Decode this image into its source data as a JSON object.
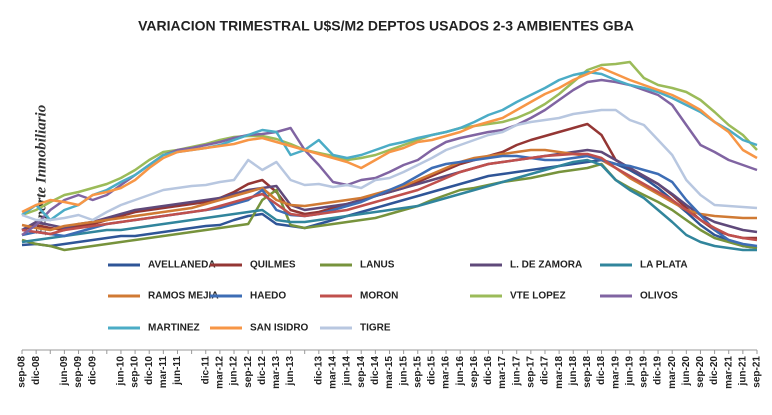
{
  "chart_data": {
    "type": "line",
    "title": "VARIACION TRIMESTRAL U$S/M2 DEPTOS USADOS 2-3 AMBIENTES GBA",
    "watermark": "Reporte Inmobiliario",
    "categories": [
      "sep-08",
      "dic-08",
      null,
      "jun-09",
      "sep-09",
      "dic-09",
      null,
      "jun-10",
      "sep-10",
      "dic-10",
      "mar-11",
      "jun-11",
      null,
      "dic-11",
      "mar-12",
      "jun-12",
      "sep-12",
      "dic-12",
      "mar-13",
      "jun-13",
      null,
      "dic-13",
      "mar-14",
      "jun-14",
      "sep-14",
      "dic-14",
      "mar-15",
      "jun-15",
      "sep-15",
      "dic-15",
      "mar-16",
      "jun-16",
      "sep-16",
      "dic-16",
      "mar-17",
      "jun-17",
      "sep-17",
      "dic-17",
      "mar-18",
      "jun-18",
      "sep-18",
      "dic-18",
      "mar-19",
      "jun-19",
      "sep-19",
      "dic-19",
      "mar-20",
      "jun-20",
      "sep-20",
      "dic-20",
      "mar-21",
      "jun-21",
      "sep-21"
    ],
    "ylim": [
      -100,
      210
    ],
    "legend": "bottom",
    "series": [
      {
        "name": "AVELLANEDA",
        "color": "#2f5597",
        "values": [
          5,
          6,
          4,
          6,
          8,
          10,
          12,
          14,
          14,
          16,
          18,
          20,
          22,
          24,
          25,
          30,
          34,
          36,
          26,
          24,
          22,
          26,
          30,
          34,
          38,
          42,
          46,
          50,
          54,
          58,
          62,
          66,
          70,
          74,
          76,
          78,
          80,
          82,
          84,
          86,
          88,
          90,
          86,
          80,
          72,
          62,
          50,
          38,
          25,
          15,
          10,
          4,
          2
        ]
      },
      {
        "name": "QUILMES",
        "color": "#943634",
        "values": [
          20,
          25,
          22,
          20,
          24,
          26,
          30,
          34,
          38,
          40,
          42,
          44,
          46,
          48,
          52,
          58,
          66,
          70,
          58,
          40,
          36,
          38,
          42,
          46,
          50,
          54,
          58,
          62,
          68,
          74,
          80,
          86,
          90,
          94,
          98,
          105,
          110,
          114,
          118,
          122,
          126,
          115,
          90,
          82,
          74,
          66,
          55,
          42,
          30,
          20,
          15,
          12,
          12
        ]
      },
      {
        "name": "LANUS",
        "color": "#77933c",
        "values": [
          10,
          6,
          4,
          0,
          2,
          4,
          6,
          8,
          10,
          12,
          14,
          16,
          18,
          20,
          22,
          24,
          26,
          50,
          60,
          25,
          22,
          24,
          26,
          28,
          30,
          32,
          36,
          40,
          44,
          50,
          55,
          60,
          62,
          65,
          68,
          70,
          72,
          75,
          78,
          80,
          82,
          86,
          70,
          62,
          55,
          48,
          40,
          30,
          20,
          12,
          8,
          4,
          2
        ]
      },
      {
        "name": "L. DE ZAMORA",
        "color": "#5f497a",
        "values": [
          20,
          28,
          25,
          22,
          26,
          28,
          32,
          36,
          40,
          42,
          44,
          46,
          48,
          50,
          52,
          56,
          60,
          62,
          64,
          45,
          40,
          42,
          44,
          46,
          50,
          54,
          58,
          62,
          66,
          70,
          74,
          78,
          82,
          86,
          88,
          90,
          92,
          94,
          96,
          98,
          100,
          98,
          90,
          82,
          74,
          66,
          56,
          45,
          35,
          28,
          24,
          20,
          18
        ]
      },
      {
        "name": "LA PLATA",
        "color": "#31859c",
        "values": [
          8,
          10,
          12,
          14,
          16,
          18,
          20,
          20,
          22,
          24,
          26,
          28,
          30,
          32,
          34,
          36,
          38,
          40,
          30,
          28,
          28,
          30,
          32,
          34,
          36,
          38,
          40,
          42,
          44,
          48,
          52,
          56,
          60,
          64,
          68,
          72,
          76,
          80,
          84,
          88,
          90,
          85,
          70,
          60,
          52,
          40,
          28,
          15,
          8,
          4,
          2,
          0,
          0
        ]
      },
      {
        "name": "RAMOS MEJIA",
        "color": "#d07a34",
        "values": [
          25,
          22,
          20,
          24,
          26,
          28,
          30,
          32,
          34,
          36,
          38,
          40,
          42,
          46,
          50,
          54,
          58,
          62,
          50,
          45,
          44,
          46,
          48,
          50,
          52,
          56,
          60,
          64,
          70,
          76,
          82,
          88,
          92,
          94,
          96,
          98,
          100,
          100,
          98,
          96,
          94,
          90,
          82,
          72,
          64,
          56,
          48,
          40,
          36,
          34,
          33,
          32,
          32
        ]
      },
      {
        "name": "HAEDO",
        "color": "#3d6db5",
        "values": [
          15,
          18,
          16,
          14,
          18,
          22,
          26,
          28,
          30,
          32,
          34,
          36,
          38,
          40,
          42,
          46,
          50,
          60,
          40,
          35,
          34,
          36,
          40,
          44,
          48,
          54,
          60,
          66,
          74,
          82,
          86,
          88,
          90,
          92,
          94,
          94,
          92,
          90,
          90,
          92,
          94,
          90,
          86,
          84,
          80,
          76,
          68,
          50,
          35,
          20,
          10,
          6,
          4
        ]
      },
      {
        "name": "MORON",
        "color": "#c0504d",
        "values": [
          20,
          18,
          16,
          20,
          22,
          24,
          26,
          28,
          30,
          32,
          34,
          36,
          38,
          40,
          44,
          48,
          52,
          56,
          46,
          36,
          34,
          36,
          38,
          40,
          44,
          48,
          52,
          56,
          60,
          66,
          72,
          78,
          82,
          86,
          88,
          90,
          92,
          94,
          95,
          96,
          96,
          92,
          82,
          74,
          66,
          58,
          50,
          40,
          30,
          22,
          15,
          12,
          10
        ]
      },
      {
        "name": "VTE LOPEZ",
        "color": "#9bbb59",
        "values": [
          35,
          40,
          48,
          55,
          58,
          62,
          66,
          72,
          80,
          90,
          98,
          100,
          103,
          106,
          110,
          113,
          114,
          114,
          111,
          106,
          100,
          97,
          94,
          90,
          92,
          95,
          100,
          105,
          110,
          115,
          118,
          122,
          124,
          126,
          128,
          132,
          138,
          146,
          156,
          168,
          180,
          185,
          186,
          188,
          172,
          165,
          162,
          158,
          150,
          138,
          125,
          115,
          100
        ]
      },
      {
        "name": "OLIVOS",
        "color": "#8064a2",
        "values": [
          15,
          25,
          40,
          50,
          55,
          50,
          55,
          65,
          75,
          85,
          95,
          100,
          102,
          105,
          108,
          112,
          115,
          116,
          118,
          122,
          100,
          85,
          68,
          65,
          70,
          72,
          78,
          85,
          90,
          100,
          108,
          112,
          115,
          118,
          120,
          125,
          132,
          140,
          150,
          160,
          168,
          170,
          168,
          165,
          160,
          155,
          145,
          125,
          105,
          98,
          90,
          85,
          80
        ]
      },
      {
        "name": "MARTINEZ",
        "color": "#4bacc6",
        "values": [
          35,
          45,
          30,
          40,
          45,
          55,
          60,
          68,
          75,
          85,
          95,
          98,
          100,
          102,
          105,
          110,
          115,
          120,
          118,
          95,
          100,
          110,
          95,
          92,
          95,
          100,
          105,
          108,
          112,
          115,
          118,
          122,
          128,
          135,
          140,
          148,
          155,
          162,
          170,
          175,
          178,
          176,
          170,
          165,
          162,
          158,
          152,
          145,
          138,
          128,
          120,
          110,
          105
        ]
      },
      {
        "name": "SAN ISIDRO",
        "color": "#f79646",
        "values": [
          38,
          45,
          50,
          48,
          45,
          55,
          58,
          62,
          70,
          82,
          92,
          98,
          100,
          102,
          104,
          106,
          110,
          112,
          108,
          104,
          100,
          96,
          92,
          88,
          82,
          90,
          98,
          102,
          108,
          110,
          114,
          118,
          124,
          128,
          132,
          140,
          148,
          156,
          162,
          170,
          176,
          182,
          176,
          170,
          165,
          160,
          155,
          148,
          140,
          128,
          118,
          100,
          92
        ]
      },
      {
        "name": "TIGRE",
        "color": "#b8c7e0",
        "values": [
          35,
          30,
          30,
          32,
          35,
          30,
          38,
          45,
          50,
          55,
          60,
          62,
          64,
          65,
          68,
          70,
          90,
          80,
          88,
          70,
          65,
          66,
          63,
          65,
          62,
          70,
          72,
          78,
          85,
          92,
          100,
          105,
          110,
          115,
          118,
          125,
          128,
          130,
          132,
          136,
          138,
          140,
          140,
          130,
          125,
          110,
          95,
          70,
          55,
          45,
          44,
          43,
          42
        ]
      }
    ]
  }
}
